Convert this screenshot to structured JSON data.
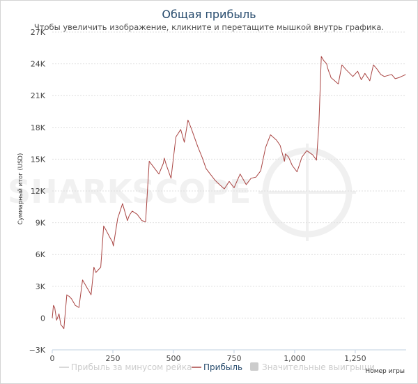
{
  "chart_data": {
    "type": "line",
    "title": "Общая прибыль",
    "subtitle": "Чтобы увеличить изображение, кликните и перетащите мышкой внутрь графика.",
    "xlabel": "Номер игры",
    "ylabel": "Суммарный итог (USD)",
    "xlim": [
      0,
      1460
    ],
    "ylim": [
      -3000,
      27000
    ],
    "x_ticks": [
      0,
      250,
      500,
      750,
      1000,
      1250
    ],
    "x_tick_labels": [
      "0",
      "250",
      "500",
      "750",
      "1,000",
      "1,250"
    ],
    "y_ticks": [
      -3000,
      0,
      3000,
      6000,
      9000,
      12000,
      15000,
      18000,
      21000,
      24000,
      27000
    ],
    "y_tick_labels": [
      "−3K",
      "0",
      "3K",
      "6K",
      "9K",
      "12K",
      "15K",
      "18K",
      "21K",
      "24K",
      "27K"
    ],
    "grid": true,
    "legend_position": "bottom",
    "watermark": "SHARKSCOPE",
    "series": [
      {
        "name": "Прибыль за минусом рейка",
        "color": "#cccccc",
        "visible": false,
        "x": [],
        "y": []
      },
      {
        "name": "Прибыль",
        "color": "#a94442",
        "visible": true,
        "x": [
          0,
          5,
          10,
          18,
          28,
          35,
          48,
          60,
          72,
          80,
          95,
          110,
          125,
          140,
          160,
          172,
          180,
          200,
          212,
          222,
          238,
          248,
          252,
          270,
          290,
          310,
          318,
          330,
          350,
          370,
          385,
          400,
          420,
          440,
          458,
          462,
          470,
          490,
          510,
          530,
          545,
          560,
          575,
          600,
          618,
          635,
          655,
          672,
          690,
          710,
          730,
          750,
          775,
          800,
          820,
          840,
          860,
          880,
          900,
          925,
          940,
          958,
          962,
          975,
          990,
          1010,
          1030,
          1050,
          1075,
          1090,
          1100,
          1110,
          1120,
          1132,
          1136,
          1142,
          1146,
          1150,
          1165,
          1180,
          1195,
          1210,
          1240,
          1260,
          1275,
          1290,
          1310,
          1325,
          1340,
          1355,
          1370,
          1385,
          1400,
          1415,
          1430,
          1440,
          1450,
          1458
        ],
        "y": [
          0,
          1200,
          1000,
          -200,
          400,
          -600,
          -1000,
          2200,
          2000,
          1800,
          1200,
          1000,
          3600,
          3000,
          2200,
          4800,
          4300,
          4800,
          8700,
          8300,
          7600,
          7200,
          6800,
          9400,
          10800,
          9200,
          9700,
          10100,
          9800,
          9200,
          9100,
          14800,
          14200,
          13600,
          14600,
          15100,
          14500,
          13200,
          17100,
          17800,
          16600,
          18700,
          17800,
          16200,
          15200,
          14100,
          13500,
          13000,
          12600,
          12200,
          12900,
          12300,
          13600,
          12600,
          13200,
          13300,
          13900,
          16100,
          17300,
          16800,
          16300,
          14800,
          15500,
          15200,
          14400,
          13800,
          15200,
          15800,
          15400,
          14900,
          18200,
          24700,
          24300,
          24000,
          23600,
          23200,
          23000,
          22700,
          22400,
          22100,
          23900,
          23500,
          22800,
          23300,
          22500,
          23100,
          22400,
          23900,
          23500,
          23000,
          22800,
          22900,
          23000,
          22600,
          22700,
          22800,
          22900,
          23000
        ]
      },
      {
        "name": "Значительные выигрыши",
        "color": "#cccccc",
        "visible": false,
        "x": [],
        "y": []
      }
    ]
  }
}
